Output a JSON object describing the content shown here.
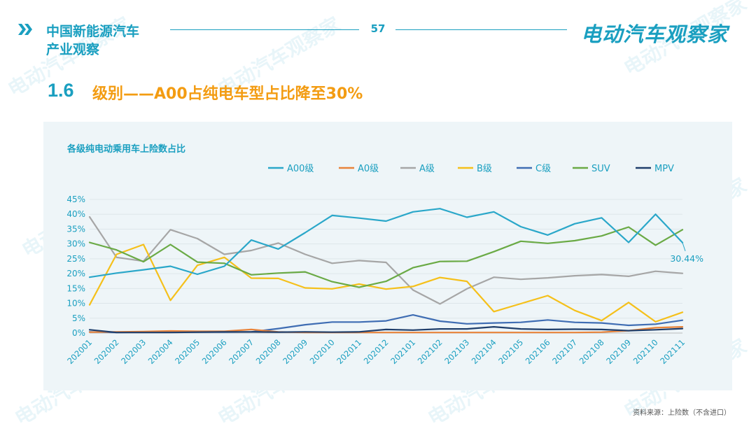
{
  "header": {
    "title_line1": "中国新能源汽车",
    "title_line2": "产业观察",
    "page_number": "57",
    "brand": "电动汽车观察家"
  },
  "section": {
    "number": "1.6",
    "title": "级别——A00占纯电车型占比降至30%"
  },
  "source_note": "资料来源：上险数（不含进口）",
  "watermark": "电动汽车观察家",
  "colors": {
    "accent": "#1a9fc0",
    "title_orange": "#f39c12",
    "A00": "#2aa7c9",
    "A0": "#e8833a",
    "A": "#a6a6a6",
    "B": "#f5c01a",
    "C": "#3f6db3",
    "SUV": "#6aaa45",
    "MPV": "#1f3e6b"
  },
  "chart_data": {
    "type": "line",
    "title": "各级纯电动乘用车上险数占比",
    "xlabel": "",
    "ylabel": "",
    "ylim": [
      0,
      45
    ],
    "yticks": [
      "0%",
      "5%",
      "10%",
      "15%",
      "20%",
      "25%",
      "30%",
      "35%",
      "40%",
      "45%"
    ],
    "legend_position": "top",
    "categories": [
      "202001",
      "202002",
      "202003",
      "202004",
      "202005",
      "202006",
      "202007",
      "202008",
      "202009",
      "202010",
      "202011",
      "202012",
      "202101",
      "202102",
      "202103",
      "202104",
      "202105",
      "202106",
      "202107",
      "202108",
      "202109",
      "202110",
      "202111"
    ],
    "series": [
      {
        "name": "A00级",
        "key": "A00",
        "values": [
          18.8,
          20.2,
          21.3,
          22.5,
          19.8,
          22.5,
          31.3,
          28.3,
          33.8,
          39.6,
          38.7,
          37.7,
          40.8,
          41.9,
          39.0,
          40.8,
          35.8,
          33.0,
          36.8,
          38.8,
          30.5,
          40.0,
          30.44
        ]
      },
      {
        "name": "A0级",
        "key": "A0",
        "values": [
          0.3,
          0.4,
          0.5,
          0.7,
          0.6,
          0.6,
          1.2,
          0.4,
          0.2,
          0.2,
          0.2,
          0.2,
          0.2,
          0.2,
          0.2,
          0.2,
          0.2,
          0.2,
          0.2,
          0.3,
          0.8,
          1.8,
          2.1
        ]
      },
      {
        "name": "A级",
        "key": "A",
        "values": [
          39.1,
          25.5,
          24.2,
          34.8,
          31.8,
          26.5,
          27.8,
          30.3,
          26.5,
          23.5,
          24.4,
          23.8,
          14.5,
          9.8,
          14.9,
          18.8,
          18.1,
          18.6,
          19.3,
          19.7,
          19.1,
          20.8,
          20.1
        ]
      },
      {
        "name": "B级",
        "key": "B",
        "values": [
          9.5,
          26.5,
          29.8,
          11.0,
          22.8,
          25.5,
          18.5,
          18.4,
          15.2,
          14.9,
          16.5,
          14.8,
          15.7,
          18.7,
          17.4,
          7.2,
          9.9,
          12.6,
          7.6,
          4.2,
          10.3,
          3.8,
          7.0
        ]
      },
      {
        "name": "C级",
        "key": "C",
        "values": [
          0.4,
          0.2,
          0.3,
          0.3,
          0.3,
          0.3,
          0.4,
          1.5,
          2.8,
          3.7,
          3.7,
          4.1,
          6.1,
          4.0,
          3.1,
          3.4,
          3.6,
          4.4,
          3.6,
          3.4,
          2.6,
          3.0,
          4.3
        ]
      },
      {
        "name": "SUV",
        "key": "SUV",
        "values": [
          30.5,
          28.0,
          24.0,
          29.8,
          23.9,
          23.5,
          19.6,
          20.2,
          20.6,
          17.3,
          15.4,
          17.4,
          22.0,
          24.1,
          24.2,
          27.4,
          30.9,
          30.2,
          31.1,
          32.7,
          35.7,
          29.6,
          34.8
        ]
      },
      {
        "name": "MPV",
        "key": "MPV",
        "values": [
          1.1,
          0.2,
          0.2,
          0.2,
          0.3,
          0.4,
          0.4,
          0.3,
          0.4,
          0.3,
          0.4,
          1.2,
          1.0,
          1.4,
          1.4,
          2.1,
          1.4,
          1.2,
          1.3,
          1.2,
          0.8,
          1.1,
          1.5
        ]
      }
    ],
    "annotation": {
      "series": "A00级",
      "category": "202111",
      "text": "30.44%"
    }
  }
}
